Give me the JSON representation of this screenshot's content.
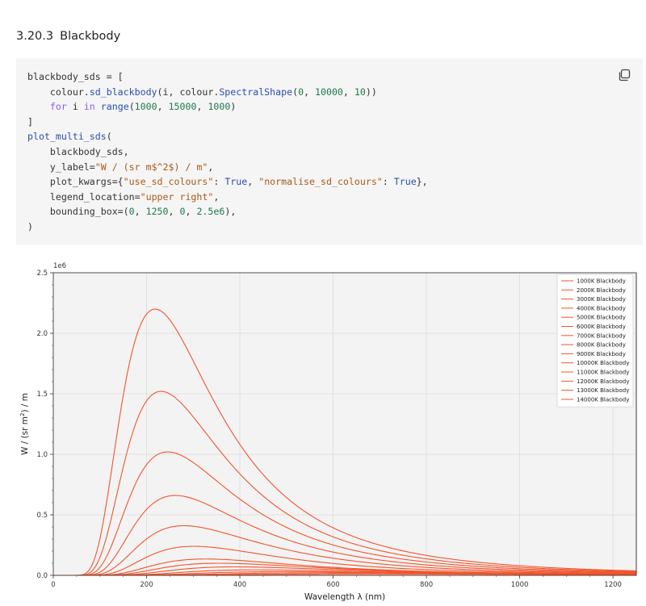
{
  "section": {
    "number": "3.20.3",
    "title": "Blackbody"
  },
  "code": {
    "lines": [
      [
        {
          "t": "blackbody_sds = [",
          "c": ""
        }
      ],
      [
        {
          "t": "    colour.",
          "c": ""
        },
        {
          "t": "sd_blackbody",
          "c": "fn"
        },
        {
          "t": "(i, colour.",
          "c": ""
        },
        {
          "t": "SpectralShape",
          "c": "fn"
        },
        {
          "t": "(",
          "c": ""
        },
        {
          "t": "0",
          "c": "num"
        },
        {
          "t": ", ",
          "c": ""
        },
        {
          "t": "10000",
          "c": "num"
        },
        {
          "t": ", ",
          "c": ""
        },
        {
          "t": "10",
          "c": "num"
        },
        {
          "t": "))",
          "c": ""
        }
      ],
      [
        {
          "t": "    ",
          "c": ""
        },
        {
          "t": "for",
          "c": "kw"
        },
        {
          "t": " i ",
          "c": ""
        },
        {
          "t": "in",
          "c": "kw"
        },
        {
          "t": " ",
          "c": ""
        },
        {
          "t": "range",
          "c": "fn"
        },
        {
          "t": "(",
          "c": ""
        },
        {
          "t": "1000",
          "c": "num"
        },
        {
          "t": ", ",
          "c": ""
        },
        {
          "t": "15000",
          "c": "num"
        },
        {
          "t": ", ",
          "c": ""
        },
        {
          "t": "1000",
          "c": "num"
        },
        {
          "t": ")",
          "c": ""
        }
      ],
      [
        {
          "t": "]",
          "c": ""
        }
      ],
      [
        {
          "t": "plot_multi_sds",
          "c": "fn"
        },
        {
          "t": "(",
          "c": ""
        }
      ],
      [
        {
          "t": "    blackbody_sds,",
          "c": ""
        }
      ],
      [
        {
          "t": "    y_label=",
          "c": ""
        },
        {
          "t": "\"W / (sr m$^2$) / m\"",
          "c": "str"
        },
        {
          "t": ",",
          "c": ""
        }
      ],
      [
        {
          "t": "    plot_kwargs={",
          "c": ""
        },
        {
          "t": "\"use_sd_colours\"",
          "c": "str"
        },
        {
          "t": ": ",
          "c": ""
        },
        {
          "t": "True",
          "c": "fn"
        },
        {
          "t": ", ",
          "c": ""
        },
        {
          "t": "\"normalise_sd_colours\"",
          "c": "str"
        },
        {
          "t": ": ",
          "c": ""
        },
        {
          "t": "True",
          "c": "fn"
        },
        {
          "t": "},",
          "c": ""
        }
      ],
      [
        {
          "t": "    legend_location=",
          "c": ""
        },
        {
          "t": "\"upper right\"",
          "c": "str"
        },
        {
          "t": ",",
          "c": ""
        }
      ],
      [
        {
          "t": "    bounding_box=(",
          "c": ""
        },
        {
          "t": "0",
          "c": "num"
        },
        {
          "t": ", ",
          "c": ""
        },
        {
          "t": "1250",
          "c": "num"
        },
        {
          "t": ", ",
          "c": ""
        },
        {
          "t": "0",
          "c": "num"
        },
        {
          "t": ", ",
          "c": ""
        },
        {
          "t": "2.5e6",
          "c": "num"
        },
        {
          "t": "),",
          "c": ""
        }
      ],
      [
        {
          "t": ")",
          "c": ""
        }
      ]
    ],
    "copy_icon": "copy-icon"
  },
  "chart_data": {
    "type": "line",
    "xlabel": "Wavelength λ (nm)",
    "ylabel": "W / (sr m²) / m",
    "y_offset_label": "1e6",
    "xlim": [
      0,
      1250
    ],
    "ylim": [
      0,
      2.5
    ],
    "x_ticks": [
      0,
      200,
      400,
      600,
      800,
      1000,
      1200
    ],
    "y_ticks": [
      0.0,
      0.5,
      1.0,
      1.5,
      2.0,
      2.5
    ],
    "y_tick_labels": [
      "0.0",
      "0.5",
      "1.0",
      "1.5",
      "2.0",
      "2.5"
    ],
    "grid": true,
    "legend_location": "upper right",
    "line_color": "#f2542d",
    "series": [
      {
        "name": "1000K Blackbody",
        "temperature": 1000
      },
      {
        "name": "2000K Blackbody",
        "temperature": 2000
      },
      {
        "name": "3000K Blackbody",
        "temperature": 3000
      },
      {
        "name": "4000K Blackbody",
        "temperature": 4000
      },
      {
        "name": "5000K Blackbody",
        "temperature": 5000
      },
      {
        "name": "6000K Blackbody",
        "temperature": 6000
      },
      {
        "name": "7000K Blackbody",
        "temperature": 7000
      },
      {
        "name": "8000K Blackbody",
        "temperature": 8000
      },
      {
        "name": "9000K Blackbody",
        "temperature": 9000
      },
      {
        "name": "10000K Blackbody",
        "temperature": 10000
      },
      {
        "name": "11000K Blackbody",
        "temperature": 11000
      },
      {
        "name": "12000K Blackbody",
        "temperature": 12000
      },
      {
        "name": "13000K Blackbody",
        "temperature": 13000
      },
      {
        "name": "14000K Blackbody",
        "temperature": 14000
      }
    ]
  }
}
